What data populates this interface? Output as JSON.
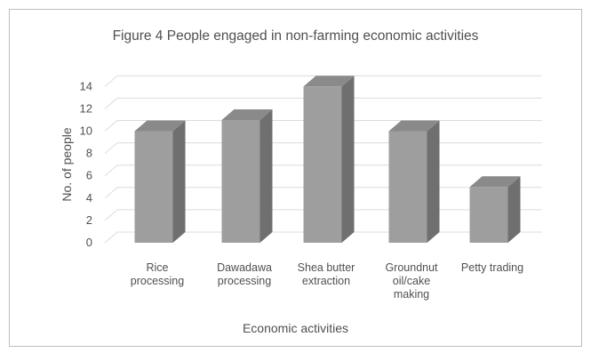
{
  "chart_data": {
    "type": "bar",
    "title": "Figure 4 People engaged in non-farming economic activities",
    "xlabel": "Economic activities",
    "ylabel": "No. of people",
    "categories": [
      "Rice\nprocessing",
      "Dawadawa\nprocessing",
      "Shea butter\nextraction",
      "Groundnut\noil/cake\nmaking",
      "Petty trading"
    ],
    "values": [
      10,
      11,
      14,
      10,
      5
    ],
    "ylim": [
      0,
      14
    ],
    "yticks": [
      "0",
      "2",
      "4",
      "6",
      "8",
      "10",
      "12",
      "14"
    ],
    "grid": true,
    "style": "3d-column",
    "colors": {
      "front": "#9e9e9e",
      "side": "#6f6f6f",
      "top": "#8a8a8a",
      "grid": "#dcdcdc",
      "text": "#505050"
    }
  }
}
